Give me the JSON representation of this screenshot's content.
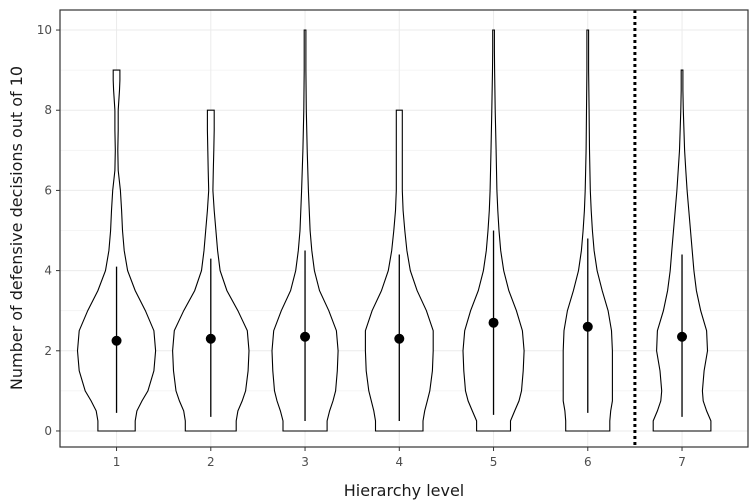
{
  "chart_data": {
    "type": "violin",
    "xlabel": "Hierarchy level",
    "ylabel": "Number of defensive decisions out of 10",
    "categories": [
      "1",
      "2",
      "3",
      "4",
      "5",
      "6",
      "7"
    ],
    "ylim": [
      -0.4,
      10.5
    ],
    "yticks": [
      0,
      2,
      4,
      6,
      8,
      10
    ],
    "grid": true,
    "reference_line": {
      "x_between": [
        "6",
        "7"
      ],
      "style": "dotted"
    },
    "summary": [
      {
        "category": "1",
        "mean": 2.25,
        "low": 0.45,
        "high": 4.1
      },
      {
        "category": "2",
        "mean": 2.3,
        "low": 0.35,
        "high": 4.3
      },
      {
        "category": "3",
        "mean": 2.35,
        "low": 0.25,
        "high": 4.5
      },
      {
        "category": "4",
        "mean": 2.3,
        "low": 0.25,
        "high": 4.4
      },
      {
        "category": "5",
        "mean": 2.7,
        "low": 0.4,
        "high": 5.0
      },
      {
        "category": "6",
        "mean": 2.6,
        "low": 0.45,
        "high": 4.8
      },
      {
        "category": "7",
        "mean": 2.35,
        "low": 0.35,
        "high": 4.4
      }
    ],
    "density": [
      {
        "category": "1",
        "points": [
          [
            0,
            0.22
          ],
          [
            0.25,
            0.22
          ],
          [
            0.5,
            0.24
          ],
          [
            0.75,
            0.3
          ],
          [
            1,
            0.37
          ],
          [
            1.5,
            0.44
          ],
          [
            2,
            0.46
          ],
          [
            2.5,
            0.44
          ],
          [
            3,
            0.34
          ],
          [
            3.5,
            0.22
          ],
          [
            4,
            0.13
          ],
          [
            4.5,
            0.09
          ],
          [
            5,
            0.07
          ],
          [
            5.5,
            0.06
          ],
          [
            6,
            0.045
          ],
          [
            6.5,
            0.02
          ],
          [
            7,
            0.015
          ],
          [
            7.5,
            0.02
          ],
          [
            8,
            0.02
          ],
          [
            8.5,
            0.035
          ],
          [
            8.75,
            0.04
          ],
          [
            9,
            0.04
          ]
        ]
      },
      {
        "category": "2",
        "points": [
          [
            0,
            0.3
          ],
          [
            0.25,
            0.3
          ],
          [
            0.5,
            0.32
          ],
          [
            0.75,
            0.37
          ],
          [
            1,
            0.41
          ],
          [
            1.5,
            0.44
          ],
          [
            2,
            0.45
          ],
          [
            2.5,
            0.43
          ],
          [
            3,
            0.32
          ],
          [
            3.5,
            0.19
          ],
          [
            4,
            0.11
          ],
          [
            4.5,
            0.08
          ],
          [
            5,
            0.06
          ],
          [
            5.5,
            0.04
          ],
          [
            6,
            0.025
          ],
          [
            6.5,
            0.03
          ],
          [
            7,
            0.035
          ],
          [
            7.5,
            0.04
          ],
          [
            8,
            0.04
          ]
        ]
      },
      {
        "category": "3",
        "points": [
          [
            0,
            0.26
          ],
          [
            0.25,
            0.26
          ],
          [
            0.5,
            0.29
          ],
          [
            0.75,
            0.33
          ],
          [
            1,
            0.36
          ],
          [
            1.5,
            0.38
          ],
          [
            2,
            0.39
          ],
          [
            2.5,
            0.37
          ],
          [
            3,
            0.28
          ],
          [
            3.5,
            0.17
          ],
          [
            4,
            0.11
          ],
          [
            4.5,
            0.08
          ],
          [
            5,
            0.06
          ],
          [
            6,
            0.04
          ],
          [
            7,
            0.025
          ],
          [
            8,
            0.015
          ],
          [
            9,
            0.01
          ],
          [
            9.5,
            0.01
          ],
          [
            10,
            0.01
          ]
        ]
      },
      {
        "category": "4",
        "points": [
          [
            0,
            0.28
          ],
          [
            0.25,
            0.28
          ],
          [
            0.5,
            0.3
          ],
          [
            0.75,
            0.33
          ],
          [
            1,
            0.36
          ],
          [
            1.5,
            0.39
          ],
          [
            2,
            0.4
          ],
          [
            2.5,
            0.4
          ],
          [
            3,
            0.32
          ],
          [
            3.5,
            0.21
          ],
          [
            4,
            0.13
          ],
          [
            4.5,
            0.09
          ],
          [
            5,
            0.065
          ],
          [
            5.5,
            0.045
          ],
          [
            6,
            0.035
          ],
          [
            7,
            0.035
          ],
          [
            8,
            0.035
          ]
        ]
      },
      {
        "category": "5",
        "points": [
          [
            0,
            0.2
          ],
          [
            0.25,
            0.2
          ],
          [
            0.5,
            0.25
          ],
          [
            0.75,
            0.3
          ],
          [
            1,
            0.33
          ],
          [
            1.5,
            0.35
          ],
          [
            2,
            0.36
          ],
          [
            2.5,
            0.34
          ],
          [
            3,
            0.27
          ],
          [
            3.5,
            0.18
          ],
          [
            4,
            0.12
          ],
          [
            4.5,
            0.085
          ],
          [
            5,
            0.065
          ],
          [
            5.5,
            0.05
          ],
          [
            6,
            0.04
          ],
          [
            7,
            0.03
          ],
          [
            8,
            0.02
          ],
          [
            9,
            0.012
          ],
          [
            9.5,
            0.01
          ],
          [
            10,
            0.01
          ]
        ]
      },
      {
        "category": "6",
        "points": [
          [
            0,
            0.26
          ],
          [
            0.25,
            0.26
          ],
          [
            0.5,
            0.27
          ],
          [
            0.75,
            0.29
          ],
          [
            1,
            0.29
          ],
          [
            1.5,
            0.29
          ],
          [
            2,
            0.29
          ],
          [
            2.5,
            0.28
          ],
          [
            3,
            0.24
          ],
          [
            3.5,
            0.17
          ],
          [
            4,
            0.11
          ],
          [
            4.5,
            0.075
          ],
          [
            5,
            0.055
          ],
          [
            5.5,
            0.04
          ],
          [
            6,
            0.03
          ],
          [
            7,
            0.02
          ],
          [
            8,
            0.015
          ],
          [
            9,
            0.01
          ],
          [
            10,
            0.01
          ]
        ]
      },
      {
        "category": "7",
        "points": [
          [
            0,
            0.34
          ],
          [
            0.25,
            0.34
          ],
          [
            0.5,
            0.29
          ],
          [
            0.75,
            0.25
          ],
          [
            1,
            0.24
          ],
          [
            1.5,
            0.26
          ],
          [
            2,
            0.3
          ],
          [
            2.5,
            0.29
          ],
          [
            3,
            0.22
          ],
          [
            3.5,
            0.17
          ],
          [
            4,
            0.14
          ],
          [
            4.5,
            0.12
          ],
          [
            5,
            0.1
          ],
          [
            5.5,
            0.08
          ],
          [
            6,
            0.06
          ],
          [
            6.5,
            0.045
          ],
          [
            7,
            0.03
          ],
          [
            8,
            0.015
          ],
          [
            8.5,
            0.01
          ],
          [
            9,
            0.01
          ]
        ]
      }
    ]
  }
}
